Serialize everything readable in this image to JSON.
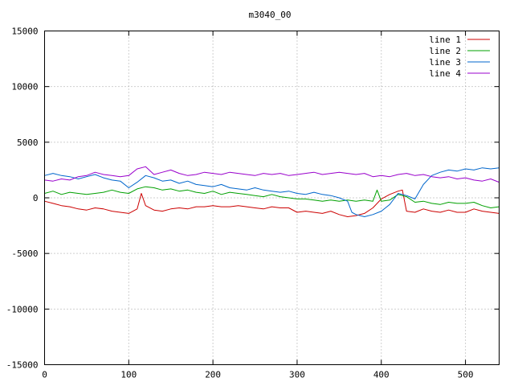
{
  "chart_data": {
    "type": "line",
    "title": "m3040_00",
    "xlabel": "",
    "ylabel": "",
    "xlim": [
      0,
      540
    ],
    "ylim": [
      -15000,
      15000
    ],
    "xticks": [
      0,
      100,
      200,
      300,
      400,
      500
    ],
    "yticks": [
      -15000,
      -10000,
      -5000,
      0,
      5000,
      10000,
      15000
    ],
    "grid": true,
    "legend_position": "top-right",
    "series": [
      {
        "name": "line 1",
        "color": "#cc0000",
        "x": [
          0,
          10,
          20,
          30,
          40,
          50,
          60,
          70,
          80,
          90,
          100,
          110,
          115,
          120,
          130,
          140,
          150,
          160,
          170,
          180,
          190,
          200,
          210,
          220,
          230,
          240,
          250,
          260,
          270,
          280,
          290,
          300,
          310,
          320,
          330,
          340,
          350,
          360,
          370,
          380,
          390,
          400,
          410,
          420,
          425,
          430,
          440,
          450,
          460,
          470,
          480,
          490,
          500,
          510,
          520,
          530,
          540
        ],
        "y": [
          -300,
          -500,
          -700,
          -800,
          -1000,
          -1100,
          -900,
          -1000,
          -1200,
          -1300,
          -1400,
          -1000,
          400,
          -700,
          -1100,
          -1200,
          -1000,
          -900,
          -1000,
          -800,
          -800,
          -700,
          -800,
          -800,
          -700,
          -800,
          -900,
          -1000,
          -800,
          -900,
          -900,
          -1300,
          -1200,
          -1300,
          -1400,
          -1200,
          -1500,
          -1700,
          -1600,
          -1400,
          -900,
          -100,
          300,
          600,
          700,
          -1200,
          -1300,
          -1000,
          -1200,
          -1300,
          -1100,
          -1300,
          -1300,
          -1000,
          -1200,
          -1300,
          -1400
        ]
      },
      {
        "name": "line 2",
        "color": "#00a000",
        "x": [
          0,
          10,
          20,
          30,
          40,
          50,
          60,
          70,
          80,
          90,
          100,
          110,
          120,
          130,
          140,
          150,
          160,
          170,
          180,
          190,
          200,
          210,
          220,
          230,
          240,
          250,
          260,
          270,
          280,
          290,
          300,
          310,
          320,
          330,
          340,
          350,
          360,
          370,
          380,
          390,
          395,
          400,
          410,
          420,
          430,
          440,
          450,
          460,
          470,
          480,
          490,
          500,
          510,
          520,
          530,
          540
        ],
        "y": [
          400,
          600,
          300,
          500,
          400,
          300,
          400,
          500,
          700,
          500,
          400,
          800,
          1000,
          900,
          700,
          800,
          600,
          700,
          500,
          400,
          600,
          300,
          500,
          400,
          300,
          200,
          100,
          300,
          100,
          0,
          -100,
          -100,
          -200,
          -300,
          -200,
          -300,
          -200,
          -300,
          -200,
          -300,
          700,
          -300,
          -200,
          300,
          100,
          -400,
          -300,
          -500,
          -600,
          -400,
          -500,
          -500,
          -400,
          -700,
          -900,
          -800
        ]
      },
      {
        "name": "line 3",
        "color": "#0066cc",
        "x": [
          0,
          10,
          20,
          30,
          40,
          50,
          60,
          70,
          80,
          90,
          100,
          110,
          120,
          130,
          140,
          150,
          160,
          170,
          180,
          190,
          200,
          210,
          220,
          230,
          240,
          250,
          260,
          270,
          280,
          290,
          300,
          310,
          320,
          330,
          340,
          350,
          360,
          365,
          370,
          380,
          390,
          400,
          410,
          420,
          430,
          440,
          450,
          460,
          470,
          480,
          490,
          500,
          510,
          520,
          530,
          540
        ],
        "y": [
          2000,
          2200,
          2000,
          1900,
          1700,
          1900,
          2100,
          1800,
          1600,
          1500,
          900,
          1400,
          2000,
          1800,
          1500,
          1600,
          1300,
          1500,
          1200,
          1100,
          1000,
          1200,
          900,
          800,
          700,
          900,
          700,
          600,
          500,
          600,
          400,
          300,
          500,
          300,
          200,
          0,
          -300,
          -1300,
          -1500,
          -1700,
          -1500,
          -1200,
          -600,
          400,
          200,
          -100,
          1200,
          2000,
          2300,
          2500,
          2400,
          2600,
          2500,
          2700,
          2600,
          2700
        ]
      },
      {
        "name": "line 4",
        "color": "#9900cc",
        "x": [
          0,
          10,
          20,
          30,
          40,
          50,
          60,
          70,
          80,
          90,
          100,
          110,
          120,
          130,
          140,
          150,
          160,
          170,
          180,
          190,
          200,
          210,
          220,
          230,
          240,
          250,
          260,
          270,
          280,
          290,
          300,
          310,
          320,
          330,
          340,
          350,
          360,
          370,
          380,
          390,
          400,
          410,
          420,
          430,
          440,
          450,
          460,
          470,
          480,
          490,
          500,
          510,
          520,
          530,
          540
        ],
        "y": [
          1600,
          1500,
          1700,
          1600,
          1900,
          2000,
          2300,
          2100,
          2000,
          1900,
          2000,
          2600,
          2800,
          2100,
          2300,
          2500,
          2200,
          2000,
          2100,
          2300,
          2200,
          2100,
          2300,
          2200,
          2100,
          2000,
          2200,
          2100,
          2200,
          2000,
          2100,
          2200,
          2300,
          2100,
          2200,
          2300,
          2200,
          2100,
          2200,
          1900,
          2000,
          1900,
          2100,
          2200,
          2000,
          2100,
          1900,
          1800,
          1900,
          1700,
          1800,
          1600,
          1500,
          1700,
          1400
        ]
      }
    ]
  }
}
